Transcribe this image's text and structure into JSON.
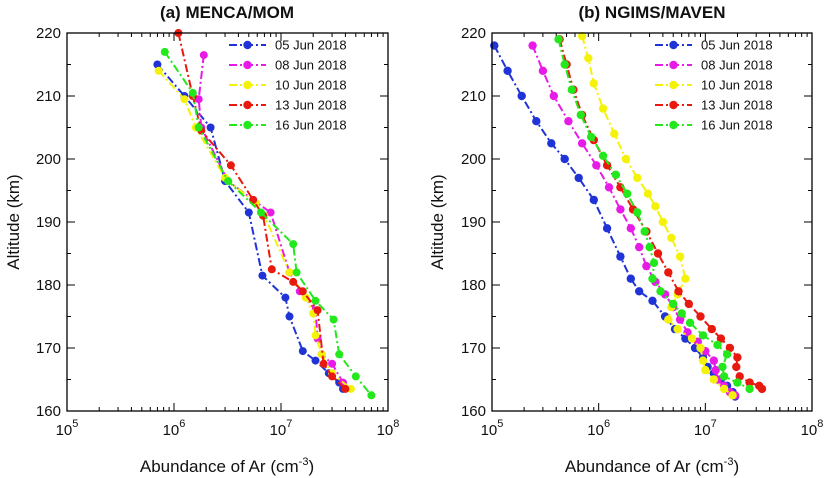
{
  "chart_data": [
    {
      "type": "line",
      "title": "(a) MENCA/MOM",
      "xlabel": "Abundance of Ar (cm",
      "xlabel_sup": "-3",
      "xlabel_end": ")",
      "ylabel": "Altitude (km)",
      "xscale": "log",
      "xlim": [
        100000,
        100000000
      ],
      "ylim": [
        160,
        220
      ],
      "xticks": [
        {
          "base": "10",
          "exp": "5"
        },
        {
          "base": "10",
          "exp": "6"
        },
        {
          "base": "10",
          "exp": "7"
        },
        {
          "base": "10",
          "exp": "8"
        }
      ],
      "yticks": [
        "160",
        "170",
        "180",
        "190",
        "200",
        "210",
        "220"
      ],
      "legend_position": "top-right",
      "series": [
        {
          "name": "05 Jun 2018",
          "color": "#1f33d6",
          "points": [
            [
              700000,
              215.0
            ],
            [
              1250000,
              210.0
            ],
            [
              2200000,
              205.0
            ],
            [
              3000000,
              196.5
            ],
            [
              5000000,
              191.5
            ],
            [
              6700000,
              181.5
            ],
            [
              11000000,
              178.0
            ],
            [
              12000000,
              175.0
            ],
            [
              16000000,
              169.5
            ],
            [
              21000000,
              168.0
            ],
            [
              28000000,
              166.0
            ],
            [
              35000000,
              164.5
            ],
            [
              38000000,
              163.5
            ]
          ]
        },
        {
          "name": "08 Jun 2018",
          "color": "#e81ae8",
          "points": [
            [
              1900000,
              216.5
            ],
            [
              1700000,
              209.5
            ],
            [
              1800000,
              205.0
            ],
            [
              3200000,
              196.5
            ],
            [
              5500000,
              193.5
            ],
            [
              8000000,
              191.5
            ],
            [
              12000000,
              182.0
            ],
            [
              15000000,
              179.0
            ],
            [
              21000000,
              176.0
            ],
            [
              22000000,
              171.5
            ],
            [
              24000000,
              169.0
            ],
            [
              30000000,
              167.5
            ],
            [
              38000000,
              164.5
            ]
          ]
        },
        {
          "name": "10 Jun 2018",
          "color": "#f5f20a",
          "points": [
            [
              720000,
              214.0
            ],
            [
              1250000,
              209.5
            ],
            [
              1600000,
              205.0
            ],
            [
              3000000,
              197.0
            ],
            [
              5800000,
              193.0
            ],
            [
              7000000,
              191.0
            ],
            [
              12000000,
              182.0
            ],
            [
              17000000,
              178.0
            ],
            [
              20000000,
              175.5
            ],
            [
              21000000,
              172.0
            ],
            [
              24000000,
              169.0
            ],
            [
              30000000,
              166.0
            ],
            [
              45000000,
              163.5
            ]
          ]
        },
        {
          "name": "13 Jun 2018",
          "color": "#e8190e",
          "points": [
            [
              1100000,
              220.0
            ],
            [
              1500000,
              210.0
            ],
            [
              1800000,
              204.5
            ],
            [
              3400000,
              199.0
            ],
            [
              5500000,
              193.5
            ],
            [
              6800000,
              191.0
            ],
            [
              8200000,
              182.5
            ],
            [
              13000000,
              180.5
            ],
            [
              16000000,
              179.0
            ],
            [
              22000000,
              176.0
            ],
            [
              25000000,
              167.5
            ],
            [
              30000000,
              165.5
            ],
            [
              40000000,
              163.5
            ]
          ]
        },
        {
          "name": "16 Jun 2018",
          "color": "#22e81c",
          "points": [
            [
              820000,
              217.0
            ],
            [
              1500000,
              210.5
            ],
            [
              1700000,
              205.0
            ],
            [
              3200000,
              196.5
            ],
            [
              6500000,
              191.5
            ],
            [
              13000000,
              186.5
            ],
            [
              14000000,
              182.0
            ],
            [
              21000000,
              177.5
            ],
            [
              31000000,
              174.5
            ],
            [
              35000000,
              169.0
            ],
            [
              50000000,
              165.5
            ],
            [
              70000000,
              162.5
            ]
          ]
        }
      ]
    },
    {
      "type": "line",
      "title": "(b) NGIMS/MAVEN",
      "xlabel": "Abundance of Ar (cm",
      "xlabel_sup": "-3",
      "xlabel_end": ")",
      "ylabel": "Altitude (km)",
      "xscale": "log",
      "xlim": [
        100000,
        100000000
      ],
      "ylim": [
        160,
        220
      ],
      "xticks": [
        {
          "base": "10",
          "exp": "5"
        },
        {
          "base": "10",
          "exp": "6"
        },
        {
          "base": "10",
          "exp": "7"
        },
        {
          "base": "10",
          "exp": "8"
        }
      ],
      "yticks": [
        "160",
        "170",
        "180",
        "190",
        "200",
        "210",
        "220"
      ],
      "legend_position": "top-right",
      "series": [
        {
          "name": "05 Jun 2018",
          "color": "#1f33d6",
          "points": [
            [
              105000,
              218.0
            ],
            [
              140000,
              214.0
            ],
            [
              190000,
              210.0
            ],
            [
              260000,
              206.0
            ],
            [
              360000,
              202.5
            ],
            [
              480000,
              200.0
            ],
            [
              650000,
              197.0
            ],
            [
              900000,
              193.5
            ],
            [
              1200000,
              189.0
            ],
            [
              1600000,
              184.5
            ],
            [
              2000000,
              181.0
            ],
            [
              2400000,
              179.0
            ],
            [
              3200000,
              177.5
            ],
            [
              4200000,
              175.0
            ],
            [
              5200000,
              173.0
            ],
            [
              6500000,
              171.5
            ],
            [
              8000000,
              170.0
            ],
            [
              9500000,
              168.5
            ],
            [
              10500000,
              167.0
            ],
            [
              12000000,
              166.0
            ],
            [
              14000000,
              165.0
            ],
            [
              16000000,
              164.0
            ],
            [
              18000000,
              163.0
            ],
            [
              19000000,
              162.3
            ]
          ]
        },
        {
          "name": "08 Jun 2018",
          "color": "#e81ae8",
          "points": [
            [
              240000,
              218.0
            ],
            [
              300000,
              214.0
            ],
            [
              380000,
              210.0
            ],
            [
              520000,
              206.0
            ],
            [
              700000,
              202.5
            ],
            [
              950000,
              199.0
            ],
            [
              1250000,
              195.5
            ],
            [
              1600000,
              192.0
            ],
            [
              2000000,
              189.0
            ],
            [
              2400000,
              186.0
            ],
            [
              2800000,
              183.0
            ],
            [
              3400000,
              180.5
            ],
            [
              4200000,
              178.5
            ],
            [
              5000000,
              176.5
            ],
            [
              5800000,
              174.5
            ],
            [
              6800000,
              172.5
            ],
            [
              8500000,
              171.0
            ],
            [
              10000000,
              169.5
            ],
            [
              12000000,
              168.0
            ],
            [
              12500000,
              166.5
            ],
            [
              13000000,
              165.0
            ],
            [
              15000000,
              164.0
            ],
            [
              17000000,
              163.0
            ],
            [
              19000000,
              162.5
            ]
          ]
        },
        {
          "name": "10 Jun 2018",
          "color": "#f5f20a",
          "points": [
            [
              700000,
              219.5
            ],
            [
              800000,
              216.0
            ],
            [
              900000,
              212.0
            ],
            [
              1100000,
              208.0
            ],
            [
              1400000,
              204.0
            ],
            [
              1800000,
              200.0
            ],
            [
              2300000,
              197.0
            ],
            [
              2900000,
              194.5
            ],
            [
              3400000,
              192.5
            ],
            [
              4000000,
              190.0
            ],
            [
              4800000,
              187.5
            ],
            [
              5800000,
              184.5
            ],
            [
              6500000,
              181.0
            ],
            [
              5500000,
              178.5
            ],
            [
              4800000,
              176.5
            ],
            [
              4500000,
              174.5
            ],
            [
              5500000,
              173.0
            ],
            [
              7500000,
              171.5
            ],
            [
              9000000,
              170.0
            ],
            [
              9500000,
              168.0
            ],
            [
              10000000,
              166.5
            ],
            [
              12000000,
              165.0
            ],
            [
              15000000,
              163.5
            ],
            [
              18000000,
              162.5
            ]
          ]
        },
        {
          "name": "13 Jun 2018",
          "color": "#e8190e",
          "points": [
            [
              430000,
              219.0
            ],
            [
              500000,
              215.0
            ],
            [
              580000,
              211.0
            ],
            [
              700000,
              207.0
            ],
            [
              900000,
              203.0
            ],
            [
              1200000,
              199.0
            ],
            [
              1600000,
              195.5
            ],
            [
              2100000,
              192.0
            ],
            [
              2800000,
              188.5
            ],
            [
              3600000,
              185.0
            ],
            [
              4500000,
              182.0
            ],
            [
              5600000,
              179.0
            ],
            [
              7000000,
              177.0
            ],
            [
              9000000,
              175.0
            ],
            [
              11500000,
              173.0
            ],
            [
              14000000,
              171.5
            ],
            [
              17000000,
              170.0
            ],
            [
              20000000,
              168.5
            ],
            [
              19500000,
              167.0
            ],
            [
              21000000,
              165.5
            ],
            [
              26000000,
              164.5
            ],
            [
              32000000,
              164.0
            ],
            [
              34000000,
              163.5
            ]
          ]
        },
        {
          "name": "16 Jun 2018",
          "color": "#22e81c",
          "points": [
            [
              420000,
              219.0
            ],
            [
              480000,
              215.0
            ],
            [
              560000,
              211.0
            ],
            [
              680000,
              207.0
            ],
            [
              850000,
              203.5
            ],
            [
              1100000,
              200.5
            ],
            [
              1450000,
              197.5
            ],
            [
              1850000,
              194.5
            ],
            [
              2300000,
              191.5
            ],
            [
              2700000,
              188.5
            ],
            [
              3000000,
              186.0
            ],
            [
              3300000,
              183.5
            ],
            [
              3200000,
              181.0
            ],
            [
              3800000,
              179.0
            ],
            [
              5000000,
              177.0
            ],
            [
              6000000,
              175.5
            ],
            [
              7200000,
              174.0
            ],
            [
              9500000,
              172.0
            ],
            [
              13000000,
              170.5
            ],
            [
              16000000,
              169.0
            ],
            [
              14500000,
              167.0
            ],
            [
              15000000,
              165.5
            ],
            [
              20000000,
              164.5
            ],
            [
              26000000,
              163.5
            ]
          ]
        }
      ]
    }
  ]
}
